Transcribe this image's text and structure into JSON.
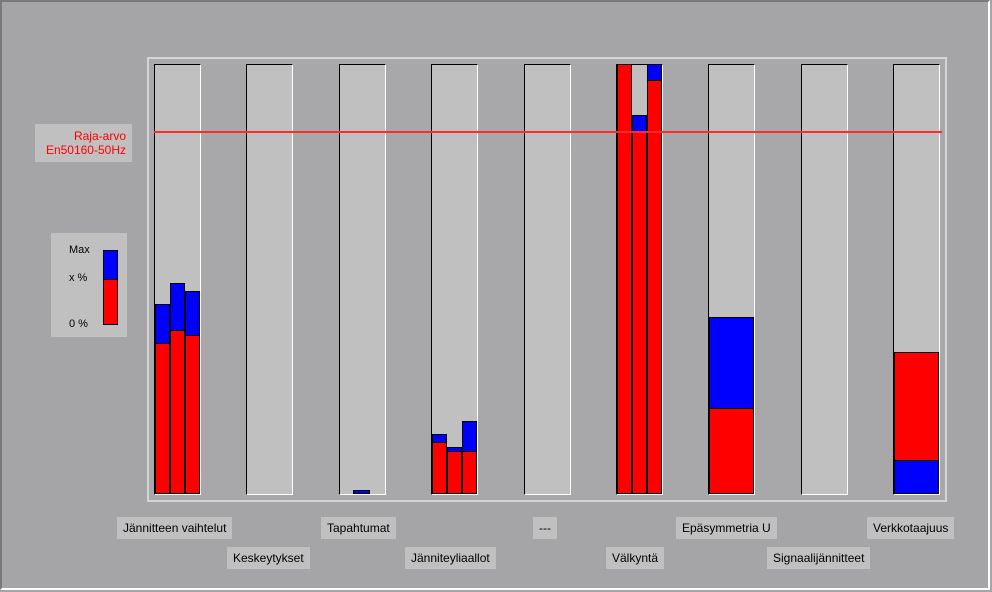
{
  "limit": {
    "line1": "Raja-arvo",
    "line2": "En50160-50Hz",
    "color": "#ff0000"
  },
  "legend": {
    "max": "Max",
    "x": "x %",
    "zero": "0 %"
  },
  "categories": [
    "Jännitteen vaihtelut",
    "Keskeytykset",
    "Tapahtumat",
    "Jänniteyliaallot",
    "---",
    "Välkyntä",
    "Epäsymmetria U",
    "Signaalijännitteet",
    "Verkkotaajuus"
  ],
  "chart_data": {
    "type": "bar",
    "stacked_bars": true,
    "categories": [
      "Jännitteen vaihtelut",
      "Keskeytykset",
      "Tapahtumat",
      "Jänniteyliaallot",
      "---",
      "Välkyntä",
      "Epäsymmetria U",
      "Signaalijännitteet",
      "Verkkotaajuus"
    ],
    "limit_level": 84,
    "series": [
      {
        "name": "x %",
        "color": "#ff0000",
        "values": [
          [
            35,
            38,
            37
          ],
          [
            0
          ],
          [
            0
          ],
          [
            12,
            10,
            10
          ],
          [
            0
          ],
          [
            100,
            84,
            96
          ],
          [
            20
          ],
          [
            0
          ],
          [
            33
          ]
        ]
      },
      {
        "name": "Max",
        "color": "#0000ff",
        "values": [
          [
            44,
            49,
            47
          ],
          [
            0
          ],
          [
            1
          ],
          [
            14,
            11,
            17
          ],
          [
            0
          ],
          [
            100,
            88,
            100
          ],
          [
            41
          ],
          [
            0
          ],
          [
            8
          ]
        ]
      }
    ]
  }
}
